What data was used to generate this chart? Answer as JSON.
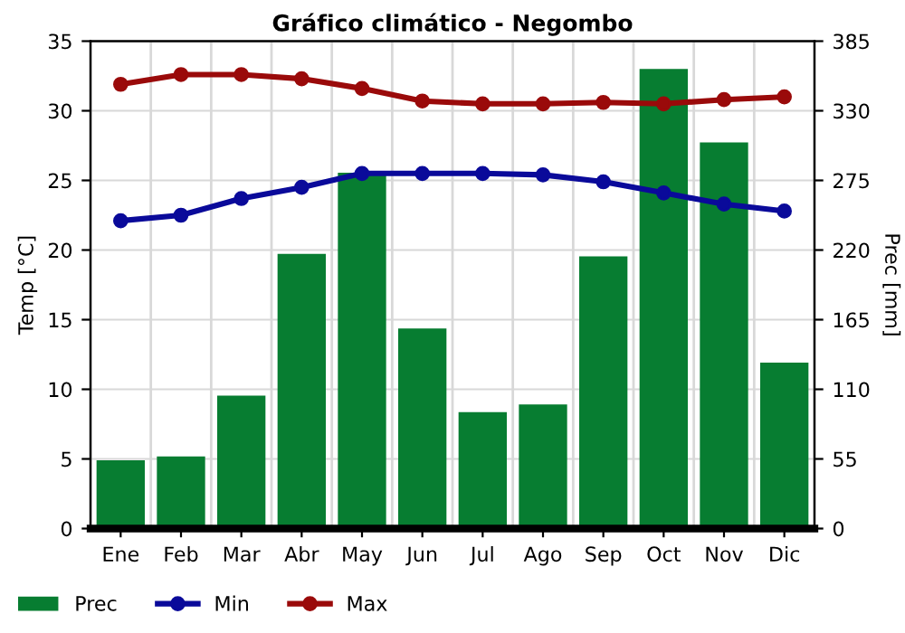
{
  "chart_data": {
    "type": "bar",
    "title": "Gráfico climático - Negombo",
    "ylabel": "Temp [°C]",
    "y2label": "Prec [mm]",
    "categories": [
      "Ene",
      "Feb",
      "Mar",
      "Abr",
      "May",
      "Jun",
      "Jul",
      "Ago",
      "Sep",
      "Oct",
      "Nov",
      "Dic"
    ],
    "series": [
      {
        "name": "Prec",
        "axis": "y2",
        "color": "#077d31",
        "values": [
          54,
          57,
          105,
          217,
          281,
          158,
          92,
          98,
          215,
          363,
          305,
          131
        ]
      },
      {
        "name": "Min",
        "type": "line",
        "color": "#0a0a9a",
        "values": [
          22.1,
          22.5,
          23.7,
          24.5,
          25.5,
          25.5,
          25.5,
          25.4,
          24.9,
          24.1,
          23.3,
          22.8
        ]
      },
      {
        "name": "Max",
        "type": "line",
        "color": "#9a0a0a",
        "values": [
          31.9,
          32.6,
          32.6,
          32.3,
          31.6,
          30.7,
          30.5,
          30.5,
          30.6,
          30.5,
          30.8,
          31.0
        ]
      }
    ],
    "ylim": [
      0,
      35
    ],
    "yticks": [
      0,
      5,
      10,
      15,
      20,
      25,
      30,
      35
    ],
    "y2lim": [
      0,
      385
    ],
    "y2ticks": [
      0,
      55,
      110,
      165,
      220,
      275,
      330,
      385
    ],
    "grid": true,
    "legend": "bottom left",
    "marker": "circle",
    "line_style": "solid"
  }
}
